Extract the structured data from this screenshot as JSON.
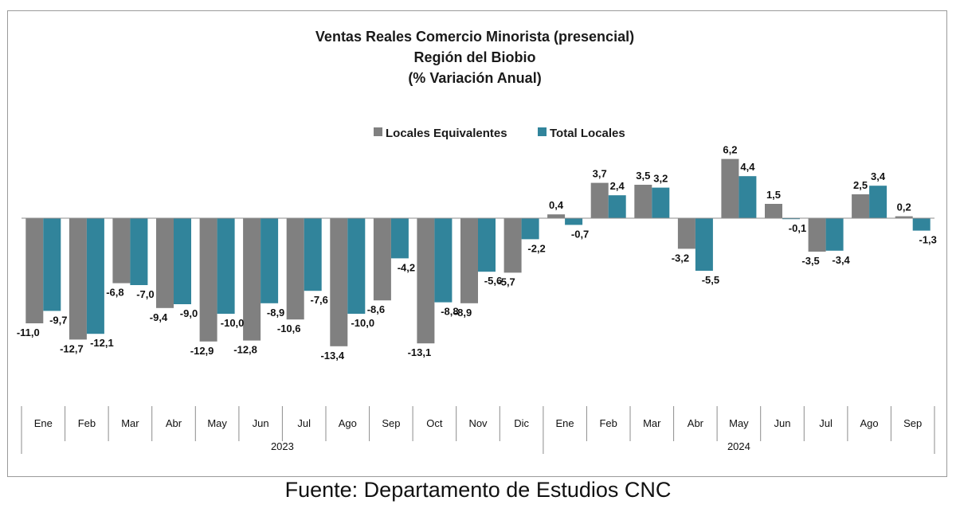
{
  "chart_data": {
    "type": "bar",
    "title": [
      "Ventas Reales Comercio Minorista (presencial)",
      "Región del Biobio",
      "(% Variación Anual)"
    ],
    "categories": [
      "Ene",
      "Feb",
      "Mar",
      "Abr",
      "May",
      "Jun",
      "Jul",
      "Ago",
      "Sep",
      "Oct",
      "Nov",
      "Dic",
      "Ene",
      "Feb",
      "Mar",
      "Abr",
      "May",
      "Jun",
      "Jul",
      "Ago",
      "Sep"
    ],
    "groups": [
      {
        "label": "2023",
        "count": 12
      },
      {
        "label": "2024",
        "count": 9
      }
    ],
    "series": [
      {
        "name": "Locales Equivalentes",
        "color": "#808080",
        "values": [
          -11.0,
          -12.7,
          -6.8,
          -9.4,
          -12.9,
          -12.8,
          -10.6,
          -13.4,
          -8.6,
          -13.1,
          -8.9,
          -5.7,
          0.4,
          3.7,
          3.5,
          -3.2,
          6.2,
          1.5,
          -3.5,
          2.5,
          0.2
        ],
        "labels": [
          "-11,0",
          "-12,7",
          "-6,8",
          "-9,4",
          "-12,9",
          "-12,8",
          "-10,6",
          "-13,4",
          "-8,6",
          "-13,1",
          "-8,9",
          "-5,7",
          "0,4",
          "3,7",
          "3,5",
          "-3,2",
          "6,2",
          "1,5",
          "-3,5",
          "2,5",
          "0,2"
        ]
      },
      {
        "name": "Total Locales",
        "color": "#31849b",
        "values": [
          -9.7,
          -12.1,
          -7.0,
          -9.0,
          -10.0,
          -8.9,
          -7.6,
          -10.0,
          -4.2,
          -8.8,
          -5.6,
          -2.2,
          -0.7,
          2.4,
          3.2,
          -5.5,
          4.4,
          -0.1,
          -3.4,
          3.4,
          -1.3
        ],
        "labels": [
          "-9,7",
          "-12,1",
          "-7,0",
          "-9,0",
          "-10,0",
          "-8,9",
          "-7,6",
          "-10,0",
          "-4,2",
          "-8,8",
          "-5,6",
          "-2,2",
          "-0,7",
          "2,4",
          "3,2",
          "-5,5",
          "4,4",
          "-0,1",
          "-3,4",
          "3,4",
          "-1,3"
        ]
      }
    ],
    "legend_position": "top",
    "grid": false
  },
  "source": "Fuente: Departamento de Estudios CNC"
}
